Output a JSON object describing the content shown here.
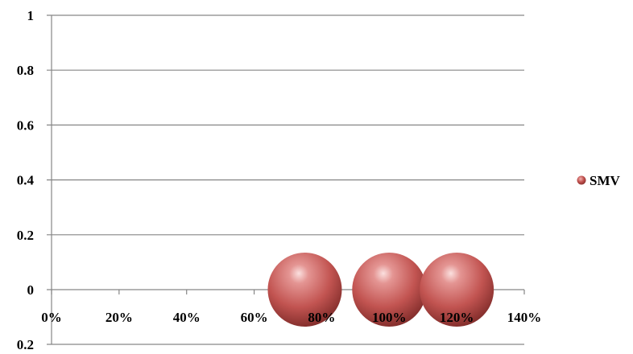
{
  "chart_data": {
    "type": "bubble",
    "title": "",
    "xlabel": "",
    "ylabel": "",
    "xlim": [
      0,
      1.4
    ],
    "ylim": [
      -0.2,
      1
    ],
    "x_ticks": [
      0,
      0.2,
      0.4,
      0.6,
      0.8,
      1.0,
      1.2,
      1.4
    ],
    "x_tick_labels": [
      "0%",
      "20%",
      "40%",
      "60%",
      "80%",
      "100%",
      "120%",
      "140%"
    ],
    "y_ticks": [
      1,
      0.8,
      0.6,
      0.4,
      0.2,
      0
    ],
    "y_tick_labels": [
      "1",
      "0.8",
      "0.6",
      "0.4",
      "0.2",
      "0"
    ],
    "y_bottom_label": "0.2",
    "grid": "horizontal",
    "legend_position": "right",
    "series": [
      {
        "name": "SMV",
        "color": "#c0504d",
        "points": [
          {
            "x": 0.75,
            "y": 0,
            "size": 1
          },
          {
            "x": 1.0,
            "y": 0,
            "size": 1
          },
          {
            "x": 1.2,
            "y": 0,
            "size": 1
          }
        ]
      }
    ]
  }
}
